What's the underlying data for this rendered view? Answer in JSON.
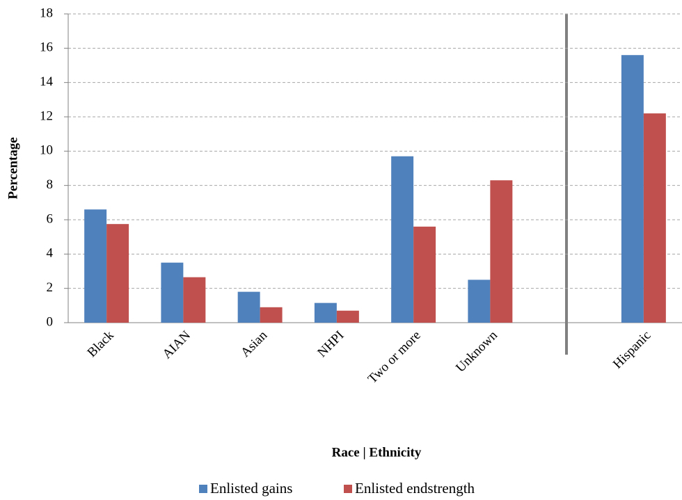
{
  "chart_data": {
    "type": "bar",
    "x_label": "Race | Ethnicity",
    "y_label": "Percentage",
    "categories": [
      "Black",
      "AIAN",
      "Asian",
      "NHPI",
      "Two or more",
      "Unknown",
      null,
      "Hispanic"
    ],
    "series": [
      {
        "name": "Enlisted gains",
        "color": "#4f81bd",
        "values": [
          6.6,
          3.5,
          1.8,
          1.15,
          9.7,
          2.5,
          null,
          15.6
        ]
      },
      {
        "name": "Enlisted endstrength",
        "color": "#c0504d",
        "values": [
          5.75,
          2.65,
          0.9,
          0.7,
          5.6,
          8.3,
          null,
          12.2
        ]
      }
    ],
    "ylim": [
      0,
      18
    ],
    "yticks": [
      0,
      2,
      4,
      6,
      8,
      10,
      12,
      14,
      16,
      18
    ],
    "grid": true,
    "legend": "bottom"
  }
}
